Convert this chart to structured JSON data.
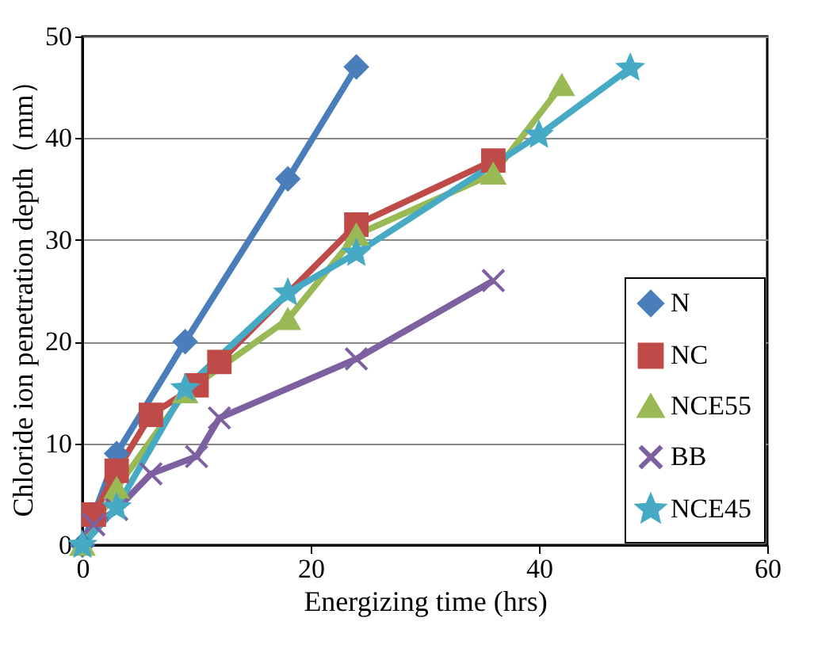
{
  "chart_data": {
    "type": "line",
    "xlabel": "Energizing time (hrs)",
    "ylabel": "Chloride ion penetration depth（mm）",
    "xlim": [
      0,
      60
    ],
    "xticks": [
      0,
      20,
      40,
      60
    ],
    "ylim": [
      0,
      50
    ],
    "yticks": [
      0,
      10,
      20,
      30,
      40,
      50
    ],
    "grid": "y",
    "legend": "bottom right",
    "line_style": "solid",
    "series": [
      {
        "name": "N",
        "color": "#4a7ebb",
        "marker": "diamond",
        "x": [
          0,
          3,
          9,
          18,
          24
        ],
        "values": [
          0,
          9,
          20,
          36,
          47
        ]
      },
      {
        "name": "NC",
        "color": "#be4b48",
        "marker": "square",
        "x": [
          1,
          3,
          6,
          10,
          12,
          24,
          36
        ],
        "values": [
          3,
          7.3,
          12.8,
          15.7,
          18,
          31.5,
          37.8
        ]
      },
      {
        "name": "NCE55",
        "color": "#98b954",
        "marker": "triangle",
        "x": [
          0,
          3,
          9,
          18,
          24,
          36,
          42
        ],
        "values": [
          0,
          5.6,
          15,
          22.2,
          30.5,
          36.5,
          45.2
        ]
      },
      {
        "name": "BB",
        "color": "#7d60a0",
        "marker": "cross",
        "x": [
          1,
          3,
          6,
          10,
          12,
          24,
          36
        ],
        "values": [
          2,
          3.5,
          7,
          8.7,
          12.5,
          18.3,
          26
        ]
      },
      {
        "name": "NCE45",
        "color": "#46aac5",
        "marker": "star",
        "x": [
          0,
          3,
          9,
          18,
          24,
          40,
          48
        ],
        "values": [
          0,
          3.7,
          15.4,
          24.8,
          28.7,
          40.3,
          46.9
        ]
      }
    ]
  }
}
